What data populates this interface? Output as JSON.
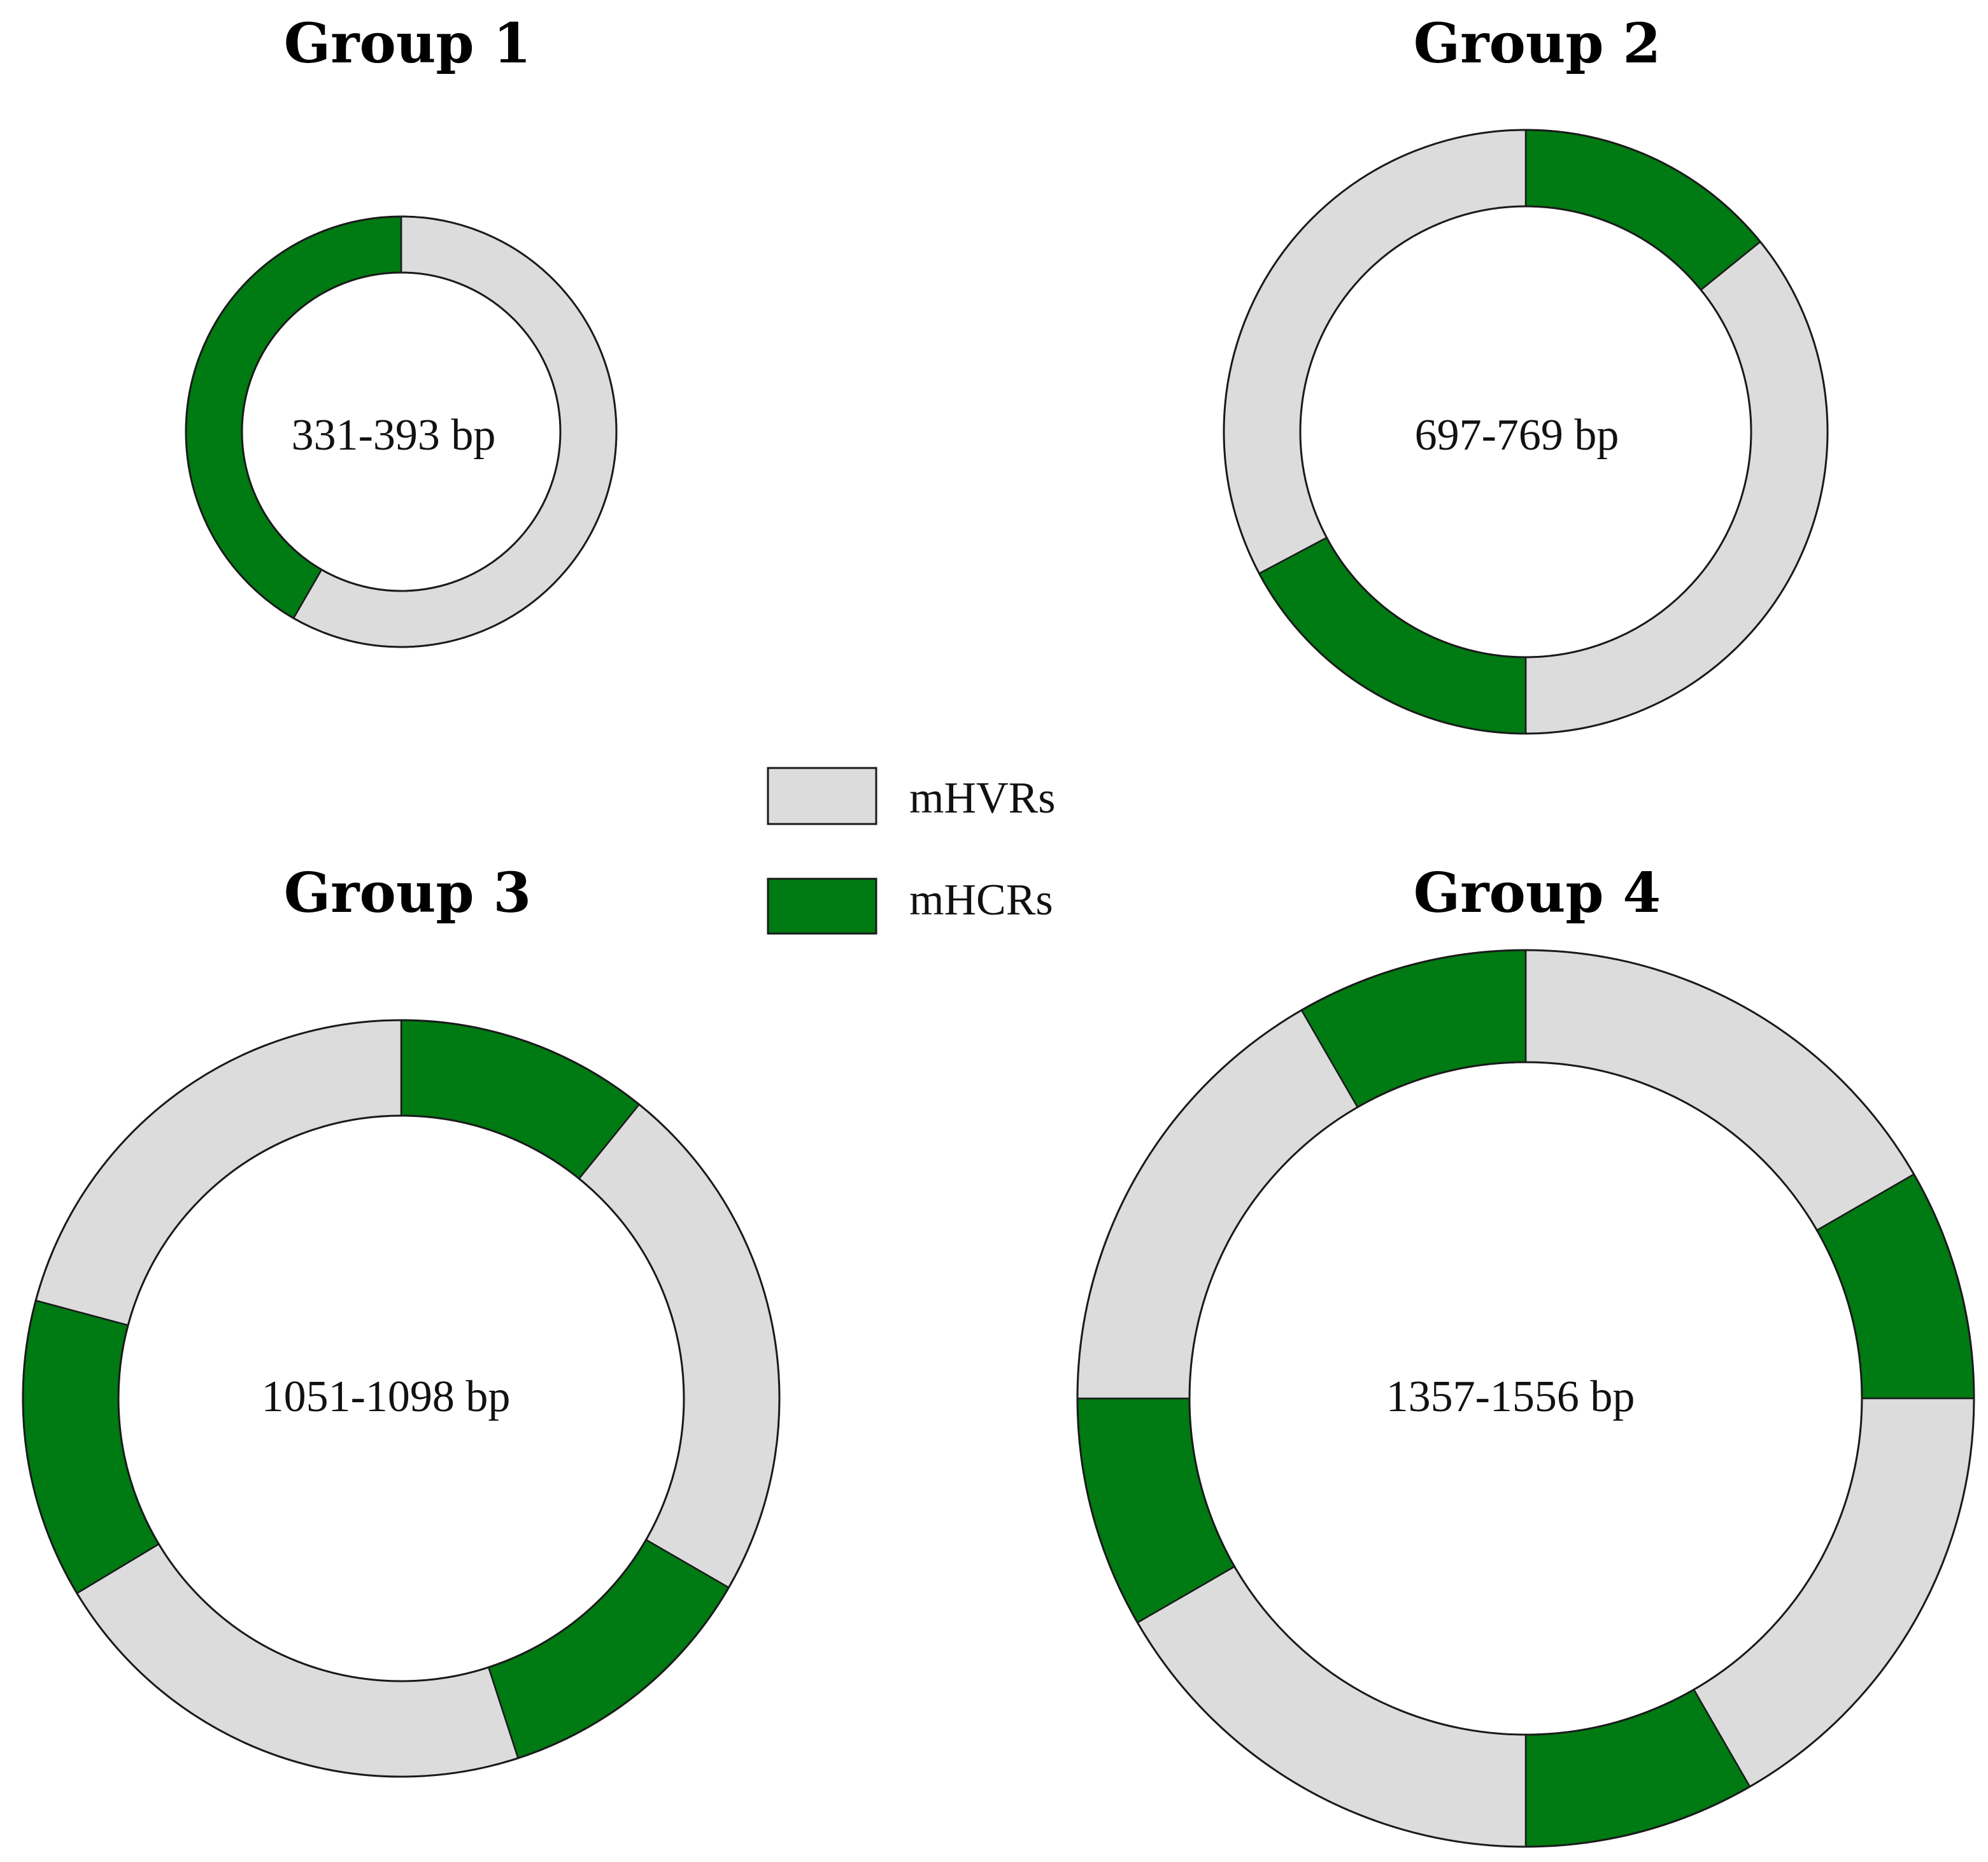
{
  "colors": {
    "mHVRs": "#dcdcdc",
    "mHCRs": "#007a12",
    "outline": "#1a1a1a"
  },
  "legend": {
    "items": [
      {
        "key": "mHVRs",
        "label": "mHVRs"
      },
      {
        "key": "mHCRs",
        "label": "mHCRs"
      }
    ]
  },
  "groups": [
    {
      "title": "Group 1",
      "size_range": "331-393 bp",
      "segments": [
        {
          "type": "mHVRs",
          "start": 0,
          "end": 210
        },
        {
          "type": "mHCRs",
          "start": 210,
          "end": 360
        }
      ]
    },
    {
      "title": "Group 2",
      "size_range": "697-769 bp",
      "segments": [
        {
          "type": "mHCRs",
          "start": 0,
          "end": 51
        },
        {
          "type": "mHVRs",
          "start": 51,
          "end": 180
        },
        {
          "type": "mHCRs",
          "start": 180,
          "end": 242
        },
        {
          "type": "mHVRs",
          "start": 242,
          "end": 360
        }
      ]
    },
    {
      "title": "Group 3",
      "size_range": "1051-1098 bp",
      "segments": [
        {
          "type": "mHCRs",
          "start": 0,
          "end": 39
        },
        {
          "type": "mHVRs",
          "start": 39,
          "end": 120
        },
        {
          "type": "mHCRs",
          "start": 120,
          "end": 162
        },
        {
          "type": "mHVRs",
          "start": 162,
          "end": 239
        },
        {
          "type": "mHCRs",
          "start": 239,
          "end": 285
        },
        {
          "type": "mHVRs",
          "start": 285,
          "end": 360
        }
      ]
    },
    {
      "title": "Group 4",
      "size_range": "1357-1556 bp",
      "segments": [
        {
          "type": "mHVRs",
          "start": 0,
          "end": 60
        },
        {
          "type": "mHCRs",
          "start": 60,
          "end": 90
        },
        {
          "type": "mHVRs",
          "start": 90,
          "end": 150
        },
        {
          "type": "mHCRs",
          "start": 150,
          "end": 180
        },
        {
          "type": "mHVRs",
          "start": 180,
          "end": 240
        },
        {
          "type": "mHCRs",
          "start": 240,
          "end": 270
        },
        {
          "type": "mHVRs",
          "start": 270,
          "end": 330
        },
        {
          "type": "mHCRs",
          "start": 330,
          "end": 360
        }
      ]
    }
  ]
}
